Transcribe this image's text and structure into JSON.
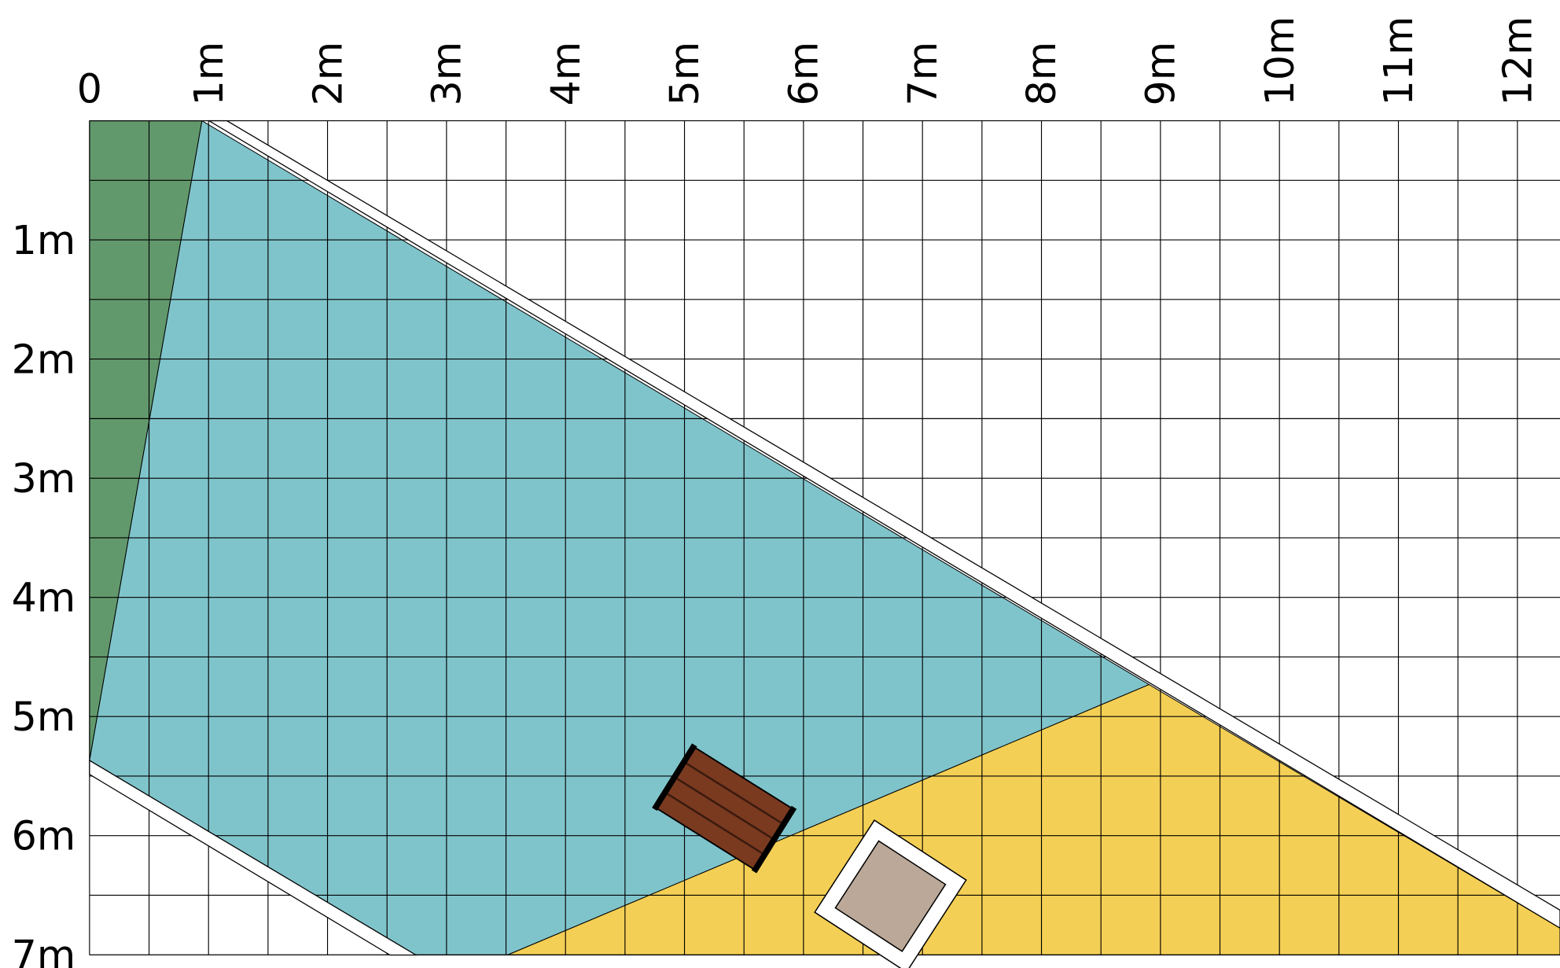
{
  "x_labels": [
    "0",
    "1m",
    "2m",
    "3m",
    "4m",
    "5m",
    "6m",
    "7m",
    "8m",
    "9m",
    "10m",
    "11m",
    "12m"
  ],
  "y_labels": [
    "1m",
    "2m",
    "3m",
    "4m",
    "5m",
    "6m",
    "7m"
  ]
}
